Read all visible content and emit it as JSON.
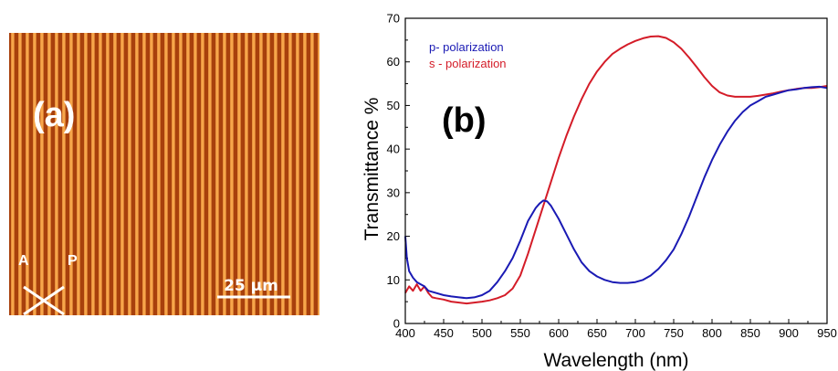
{
  "panel_a": {
    "label": "(a)",
    "polarizer_label": "P",
    "analyzer_label": "A",
    "scale_bar_label": "25 μm",
    "colors": {
      "background": "#a8400c",
      "stripe": "#f7a64a",
      "markings": "#ffffff"
    }
  },
  "chart_data": {
    "type": "line",
    "panel_label": "(b)",
    "title": "",
    "xlabel": "Wavelength (nm)",
    "ylabel": "Transmittance %",
    "xlim": [
      400,
      950
    ],
    "ylim": [
      0,
      70
    ],
    "xticks": [
      400,
      450,
      500,
      550,
      600,
      650,
      700,
      750,
      800,
      850,
      900,
      950
    ],
    "yticks": [
      0,
      10,
      20,
      30,
      40,
      50,
      60,
      70
    ],
    "grid": false,
    "legend_position": "top-left",
    "series": [
      {
        "name": "p- polarization",
        "color": "#1a1ab4",
        "x": [
          400,
          402,
          405,
          410,
          415,
          420,
          425,
          430,
          440,
          450,
          460,
          470,
          480,
          490,
          500,
          510,
          520,
          530,
          540,
          550,
          560,
          570,
          575,
          580,
          585,
          590,
          600,
          610,
          620,
          630,
          640,
          650,
          660,
          670,
          680,
          690,
          700,
          710,
          720,
          730,
          740,
          750,
          760,
          770,
          780,
          790,
          800,
          810,
          820,
          830,
          840,
          850,
          860,
          870,
          880,
          890,
          900,
          910,
          920,
          930,
          940,
          950
        ],
        "y": [
          20,
          15,
          12,
          10.5,
          9.5,
          9,
          8.5,
          7.5,
          7,
          6.5,
          6.2,
          6,
          5.8,
          6,
          6.5,
          7.5,
          9.5,
          12,
          15,
          19,
          23.5,
          26.5,
          27.5,
          28.2,
          28,
          27,
          24,
          20.5,
          17,
          14,
          12,
          10.8,
          10,
          9.5,
          9.3,
          9.3,
          9.5,
          10,
          11,
          12.5,
          14.5,
          17,
          20.5,
          24.5,
          29,
          33.5,
          37.5,
          41,
          44,
          46.5,
          48.5,
          50,
          51,
          52,
          52.5,
          53,
          53.5,
          53.7,
          54,
          54.2,
          54.3,
          54
        ]
      },
      {
        "name": "s - polarization",
        "color": "#d41c28",
        "x": [
          400,
          405,
          410,
          415,
          420,
          425,
          430,
          435,
          440,
          450,
          460,
          470,
          480,
          490,
          500,
          510,
          520,
          530,
          540,
          550,
          560,
          570,
          580,
          590,
          600,
          610,
          620,
          630,
          640,
          650,
          660,
          670,
          680,
          690,
          700,
          710,
          720,
          730,
          740,
          750,
          760,
          770,
          780,
          790,
          800,
          810,
          820,
          830,
          840,
          850,
          860,
          870,
          880,
          890,
          900,
          910,
          920,
          930,
          940,
          950
        ],
        "y": [
          7,
          8.5,
          7.5,
          9,
          7.5,
          8.5,
          7,
          6,
          5.8,
          5.5,
          5,
          4.8,
          4.6,
          4.8,
          5,
          5.3,
          5.8,
          6.5,
          8,
          11,
          16,
          21.5,
          27,
          32.5,
          38,
          43,
          47.5,
          51.5,
          55,
          57.8,
          60,
          61.8,
          63,
          64,
          64.8,
          65.4,
          65.8,
          65.9,
          65.5,
          64.5,
          63,
          61,
          58.8,
          56.5,
          54.5,
          53,
          52.3,
          52,
          52,
          52,
          52.2,
          52.5,
          52.8,
          53.2,
          53.5,
          53.8,
          54,
          54,
          54.2,
          54.5
        ]
      }
    ]
  }
}
